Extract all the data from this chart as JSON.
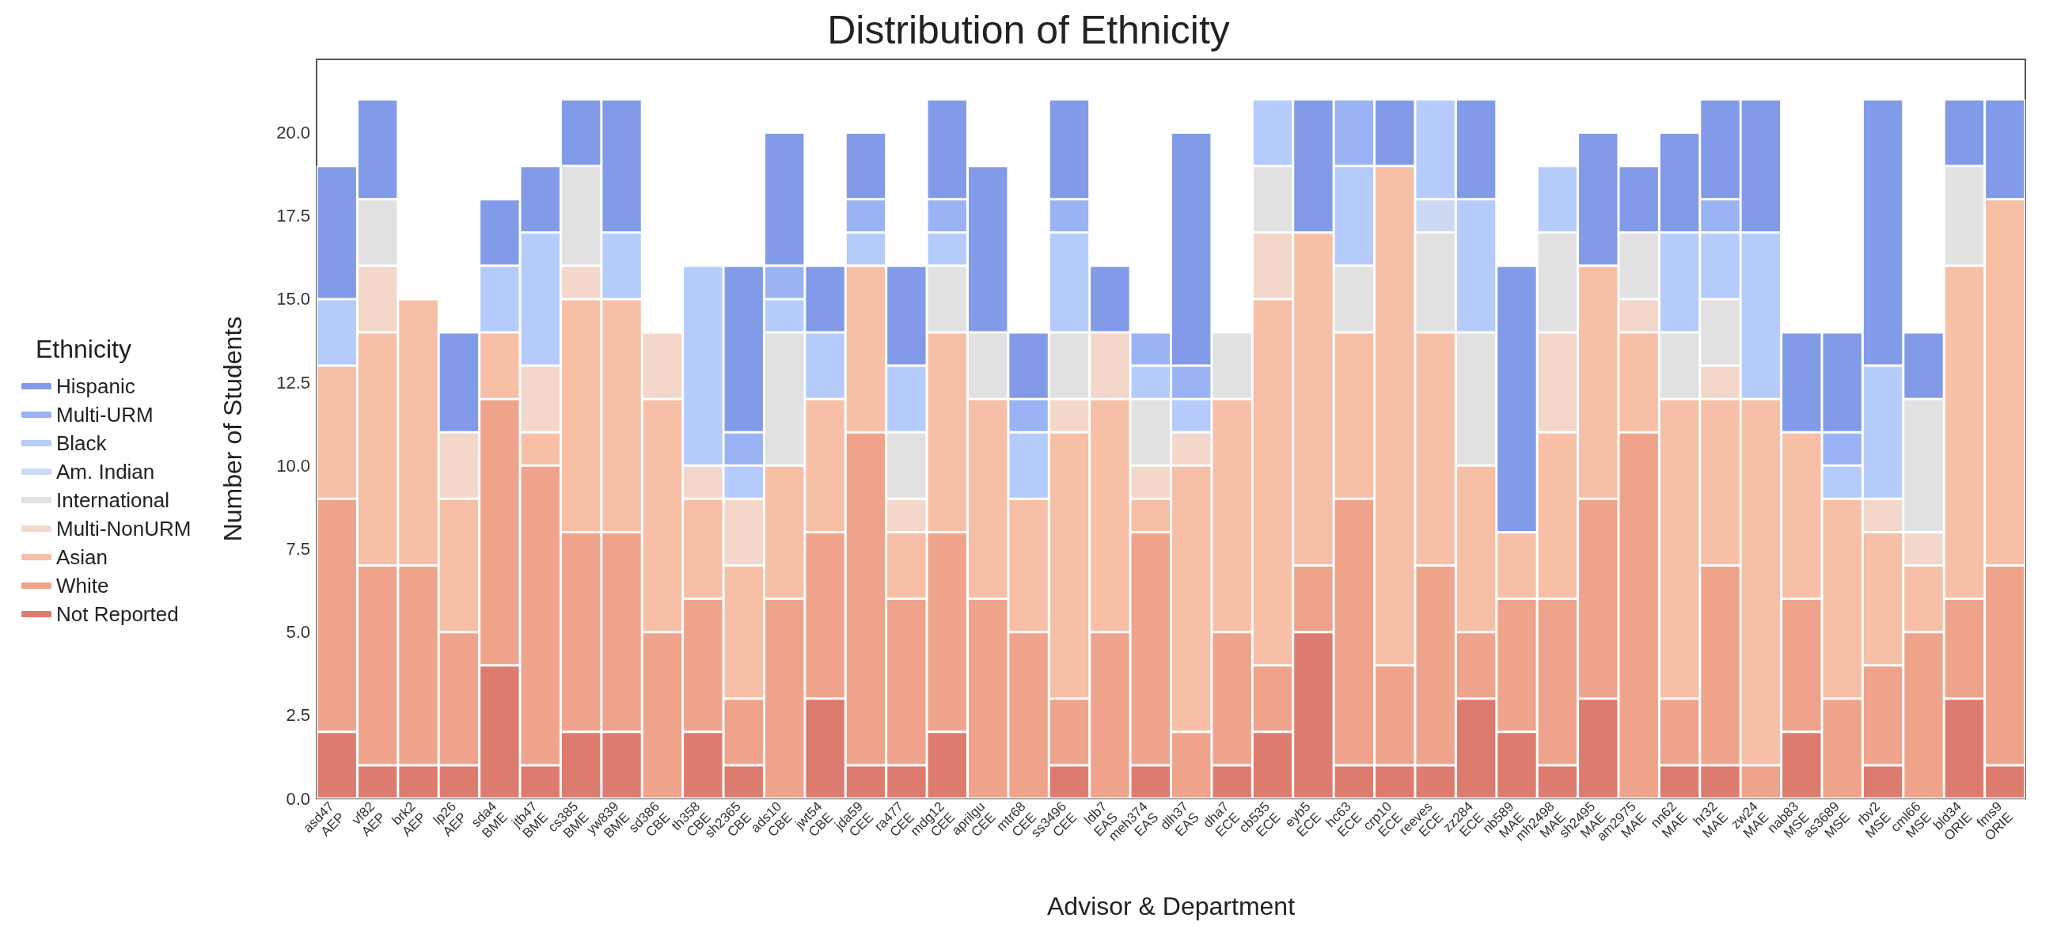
{
  "chart_data": {
    "type": "bar",
    "stacked": true,
    "title": "Distribution of Ethnicity",
    "xlabel": "Advisor & Department",
    "ylabel": "Number of Students",
    "legend_title": "Ethnicity",
    "legend": "left",
    "grid": false,
    "categories": [
      "asd47\nAEP",
      "vf82\nAEP",
      "brk2\nAEP",
      "lp26\nAEP",
      "sda4\nBME",
      "jtb47\nBME",
      "cs385\nBME",
      "yw839\nBME",
      "sd386\nCBE",
      "th358\nCBE",
      "sh2365\nCBE",
      "ads10\nCBE",
      "jwt54\nCBE",
      "jda59\nCEE",
      "ra477\nCEE",
      "mdg12\nCEE",
      "aprilgu\nCEE",
      "mtr68\nCEE",
      "ss3496\nCEE",
      "ldb7\nEAS",
      "meh374\nEAS",
      "dlh37\nEAS",
      "dha7\nECE",
      "cb535\nECE",
      "eyb5\nECE",
      "hc63\nECE",
      "crp10\nECE",
      "reeves\nECE",
      "zz284\nECE",
      "nb589\nMAE",
      "mh2498\nMAE",
      "sh2495\nMAE",
      "am2975\nMAE",
      "nn62\nMAE",
      "hr32\nMAE",
      "zw24\nMAE",
      "nab83\nMSE",
      "as3689\nMSE",
      "rbv2\nMSE",
      "cml66\nMSE",
      "bld34\nORIE",
      "fms9\nORIE"
    ],
    "ylim": [
      0,
      22.2
    ],
    "yticks": [
      {
        "value": 0,
        "label": "0.0"
      },
      2.5,
      {
        "value": 5,
        "label": "5.0"
      },
      7.5,
      {
        "value": 10,
        "label": "10.0"
      },
      12.5,
      {
        "value": 15,
        "label": "15.0"
      },
      17.5,
      {
        "value": 20,
        "label": "20.0"
      }
    ],
    "series": [
      {
        "name": "Not Reported",
        "color": "#de7b6f",
        "values": [
          2,
          1,
          1,
          1,
          4,
          1,
          2,
          2,
          0,
          2,
          1,
          0,
          3,
          1,
          1,
          2,
          0,
          0,
          1,
          0,
          1,
          0,
          1,
          2,
          5,
          1,
          1,
          1,
          3,
          2,
          1,
          3,
          0,
          1,
          1,
          0,
          2,
          0,
          1,
          0,
          3,
          1
        ]
      },
      {
        "name": "White",
        "color": "#eea38a",
        "values": [
          7,
          6,
          6,
          4,
          8,
          9,
          6,
          6,
          5,
          4,
          2,
          6,
          5,
          10,
          5,
          6,
          6,
          5,
          2,
          5,
          7,
          2,
          4,
          2,
          2,
          8,
          3,
          6,
          2,
          4,
          5,
          6,
          11,
          2,
          6,
          1,
          4,
          3,
          3,
          5,
          3,
          6
        ]
      },
      {
        "name": "Asian",
        "color": "#f6bfa6",
        "values": [
          4,
          7,
          8,
          4,
          2,
          1,
          7,
          7,
          7,
          3,
          4,
          4,
          4,
          5,
          2,
          6,
          6,
          4,
          8,
          7,
          1,
          8,
          7,
          11,
          10,
          5,
          15,
          7,
          5,
          2,
          5,
          7,
          3,
          9,
          5,
          11,
          5,
          6,
          4,
          2,
          10,
          11
        ]
      },
      {
        "name": "Multi-NonURM",
        "color": "#f3d7cb",
        "values": [
          0,
          2,
          0,
          2,
          0,
          2,
          1,
          0,
          2,
          1,
          2,
          0,
          0,
          0,
          1,
          0,
          0,
          0,
          1,
          2,
          1,
          1,
          0,
          2,
          0,
          0,
          0,
          0,
          0,
          0,
          3,
          0,
          1,
          0,
          1,
          0,
          0,
          0,
          1,
          1,
          0,
          0
        ]
      },
      {
        "name": "International",
        "color": "#e1e1e1",
        "values": [
          0,
          2,
          0,
          0,
          0,
          0,
          3,
          0,
          0,
          0,
          0,
          4,
          0,
          0,
          2,
          2,
          2,
          0,
          2,
          0,
          2,
          0,
          2,
          2,
          0,
          2,
          0,
          3,
          4,
          0,
          3,
          0,
          2,
          2,
          2,
          0,
          0,
          0,
          0,
          4,
          3,
          0
        ]
      },
      {
        "name": "Am. Indian",
        "color": "#cdd9f2",
        "values": [
          0,
          0,
          0,
          0,
          0,
          0,
          0,
          0,
          0,
          0,
          0,
          0,
          0,
          0,
          0,
          0,
          0,
          0,
          0,
          0,
          0,
          0,
          0,
          0,
          0,
          0,
          0,
          1,
          0,
          0,
          0,
          0,
          0,
          0,
          0,
          0,
          0,
          0,
          0,
          0,
          0,
          0
        ]
      },
      {
        "name": "Black",
        "color": "#b5cbfb",
        "values": [
          2,
          0,
          0,
          0,
          2,
          4,
          0,
          2,
          0,
          6,
          1,
          1,
          2,
          1,
          2,
          1,
          0,
          2,
          3,
          0,
          1,
          1,
          0,
          2,
          0,
          3,
          0,
          3,
          4,
          0,
          2,
          0,
          0,
          3,
          2,
          5,
          0,
          1,
          4,
          0,
          0,
          0
        ]
      },
      {
        "name": "Multi-URM",
        "color": "#9ab3f5",
        "values": [
          0,
          0,
          0,
          0,
          0,
          0,
          0,
          0,
          0,
          0,
          1,
          1,
          0,
          1,
          0,
          1,
          0,
          1,
          1,
          0,
          1,
          1,
          0,
          0,
          0,
          2,
          0,
          0,
          0,
          0,
          0,
          0,
          0,
          0,
          1,
          0,
          0,
          1,
          0,
          0,
          0,
          0
        ]
      },
      {
        "name": "Hispanic",
        "color": "#819be8",
        "values": [
          4,
          3,
          0,
          3,
          2,
          2,
          2,
          4,
          0,
          0,
          5,
          4,
          2,
          2,
          3,
          3,
          5,
          2,
          3,
          2,
          0,
          7,
          0,
          0,
          4,
          0,
          2,
          0,
          3,
          8,
          0,
          4,
          2,
          3,
          3,
          4,
          3,
          3,
          8,
          2,
          2,
          3
        ]
      }
    ]
  }
}
